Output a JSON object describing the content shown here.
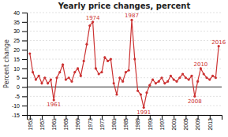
{
  "chart_data": {
    "type": "line",
    "title": "Yearly price changes, percent",
    "ylabel": "Percent change",
    "x": [
      1953,
      1954,
      1955,
      1956,
      1957,
      1958,
      1959,
      1960,
      1961,
      1962,
      1963,
      1964,
      1965,
      1966,
      1967,
      1968,
      1969,
      1970,
      1971,
      1972,
      1973,
      1974,
      1975,
      1976,
      1977,
      1978,
      1979,
      1980,
      1981,
      1982,
      1983,
      1984,
      1985,
      1986,
      1987,
      1988,
      1989,
      1990,
      1991,
      1992,
      1993,
      1994,
      1995,
      1996,
      1997,
      1998,
      1999,
      2000,
      2001,
      2002,
      2003,
      2004,
      2005,
      2006,
      2007,
      2008,
      2009,
      2010,
      2011,
      2012,
      2013,
      2014,
      2015,
      2016
    ],
    "values": [
      18,
      8,
      4,
      6,
      2,
      5,
      2,
      4,
      -7,
      5,
      8,
      12,
      4,
      5,
      3,
      8,
      10,
      6,
      14,
      23,
      33,
      35,
      10,
      7,
      8,
      16,
      14,
      15,
      2,
      -4,
      5,
      3,
      8,
      9,
      36,
      15,
      -2,
      -4,
      -11,
      -3,
      1,
      4,
      2,
      3,
      5,
      2,
      3,
      6,
      4,
      3,
      5,
      7,
      5,
      4,
      6,
      -5,
      3,
      10,
      7,
      5,
      4,
      6,
      5,
      22
    ],
    "color": "#cc3333",
    "marker": "circle",
    "line_style": "solid",
    "grid": true,
    "annotations": [
      {
        "x": 1961,
        "y": -7,
        "label": "1961",
        "position": "below"
      },
      {
        "x": 1974,
        "y": 35,
        "label": "1974",
        "position": "above"
      },
      {
        "x": 1987,
        "y": 36,
        "label": "1987",
        "position": "above"
      },
      {
        "x": 1991,
        "y": -11,
        "label": "1991",
        "position": "below"
      },
      {
        "x": 2008,
        "y": -5,
        "label": "2008",
        "position": "below"
      },
      {
        "x": 2010,
        "y": 10,
        "label": "2010",
        "position": "above"
      },
      {
        "x": 2016,
        "y": 22,
        "label": "2016",
        "position": "above"
      }
    ],
    "xlim": [
      1952,
      2017
    ],
    "xticks": [
      1953,
      1957,
      1961,
      1965,
      1969,
      1973,
      1977,
      1981,
      1985,
      1989,
      1993,
      1997,
      2001,
      2005,
      2009,
      2013
    ],
    "ylim": [
      -15,
      40
    ],
    "yticks": [
      -15,
      -10,
      -5,
      0,
      5,
      10,
      15,
      20,
      25,
      30,
      35,
      40
    ]
  }
}
